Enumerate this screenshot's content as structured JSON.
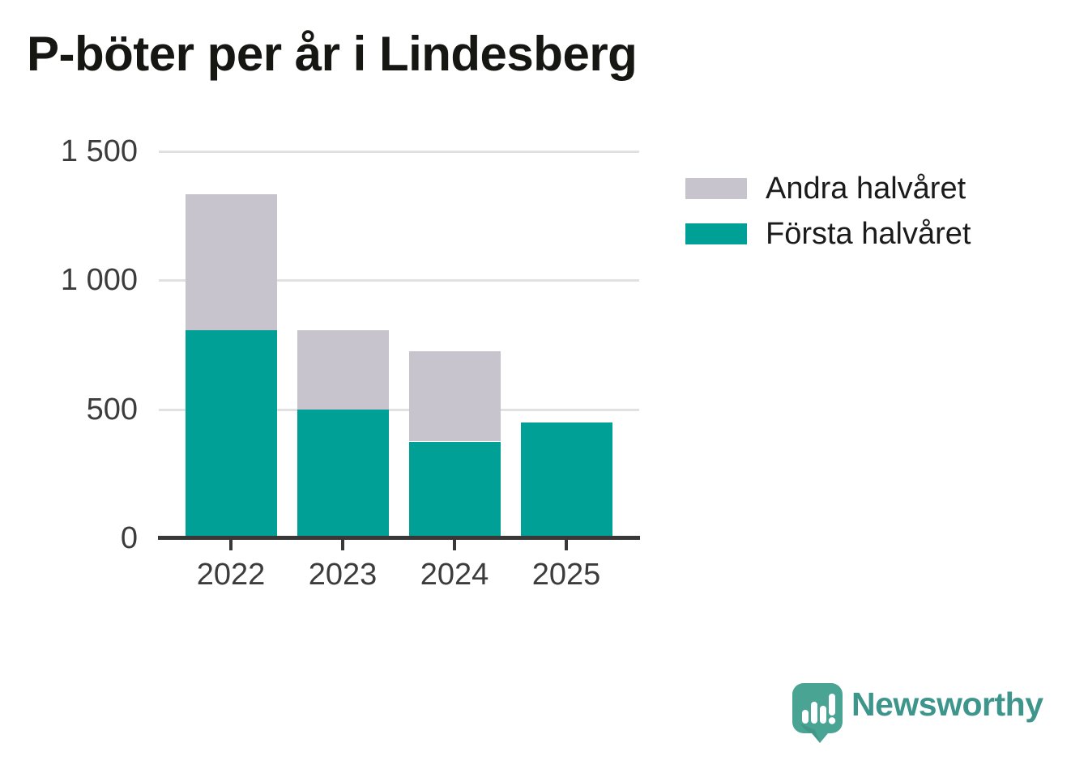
{
  "chart_data": {
    "type": "bar",
    "stacked": true,
    "title": "P-böter per år i Lindesberg",
    "categories": [
      "2022",
      "2023",
      "2024",
      "2025"
    ],
    "series": [
      {
        "name": "Första halvåret",
        "color": "#00A096",
        "values": [
          805,
          500,
          375,
          450
        ]
      },
      {
        "name": "Andra halvåret",
        "color": "#C7C4CD",
        "values": [
          530,
          305,
          350,
          0
        ]
      }
    ],
    "totals": [
      1335,
      805,
      725,
      450
    ],
    "xlabel": "",
    "ylabel": "",
    "ylim": [
      0,
      1500
    ],
    "yticks": [
      {
        "value": 0,
        "label": "0"
      },
      {
        "value": 500,
        "label": "500"
      },
      {
        "value": 1000,
        "label": "1 000"
      },
      {
        "value": 1500,
        "label": "1 500"
      }
    ],
    "grid": "horizontal",
    "legend_position": "top-right"
  },
  "legend": {
    "items": [
      {
        "label": "Andra halvåret",
        "color": "#C7C4CD"
      },
      {
        "label": "Första halvåret",
        "color": "#00A096"
      }
    ]
  },
  "branding": {
    "name": "Newsworthy",
    "icon": "newsworthy-speech-bubble-bar-chart-icon",
    "text_color": "#3E958B",
    "icon_color": "#4AA493"
  },
  "colors": {
    "first_half": "#00A096",
    "second_half": "#C7C4CD",
    "gridline": "#E1E1E1",
    "axis": "#383838",
    "tick_label": "#3C3C3C",
    "title": "#161613"
  }
}
